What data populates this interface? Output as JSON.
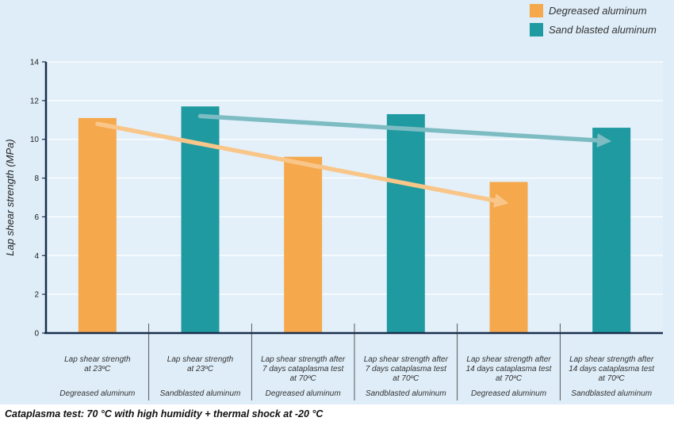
{
  "chart_data": {
    "type": "bar",
    "title": "",
    "xlabel": "",
    "ylabel": "Lap shear strength (MPa)",
    "ylim": [
      0,
      14
    ],
    "yticks": [
      0,
      2,
      4,
      6,
      8,
      10,
      12,
      14
    ],
    "grid": true,
    "legend_position": "top-right",
    "series": [
      {
        "name": "Degreased aluminum",
        "color": "#f5a84c"
      },
      {
        "name": "Sand blasted aluminum",
        "color": "#1f9aa0"
      }
    ],
    "categories": [
      {
        "lines": [
          "Lap shear strength",
          "at 23ºC"
        ],
        "material": "Degreased aluminum",
        "series": 0,
        "value": 11.1
      },
      {
        "lines": [
          "Lap shear strength",
          "at 23ºC"
        ],
        "material": "Sandblasted aluminum",
        "series": 1,
        "value": 11.7
      },
      {
        "lines": [
          "Lap shear strength after",
          "7 days cataplasma test",
          "at 70ºC"
        ],
        "material": "Degreased aluminum",
        "series": 0,
        "value": 9.1
      },
      {
        "lines": [
          "Lap shear strength after",
          "7 days cataplasma test",
          "at 70ºC"
        ],
        "material": "Sandblasted aluminum",
        "series": 1,
        "value": 11.3
      },
      {
        "lines": [
          "Lap shear strength after",
          "14 days cataplasma test",
          "at 70ºC"
        ],
        "material": "Degreased aluminum",
        "series": 0,
        "value": 7.8
      },
      {
        "lines": [
          "Lap shear strength after",
          "14 days cataplasma test",
          "at 70ºC"
        ],
        "material": "Sandblasted aluminum",
        "series": 1,
        "value": 10.6
      }
    ],
    "trend_arrows": [
      {
        "series": 0,
        "color": "#f9c68a",
        "from": {
          "category": 0,
          "value": 10.8
        },
        "to": {
          "category": 4,
          "value": 6.7
        }
      },
      {
        "series": 1,
        "color": "#7cbcc2",
        "from": {
          "category": 1,
          "value": 11.2
        },
        "to": {
          "category": 5,
          "value": 9.9
        }
      }
    ]
  },
  "caption": "Cataplasma test: 70 °C with high humidity + thermal shock at -20 °C"
}
